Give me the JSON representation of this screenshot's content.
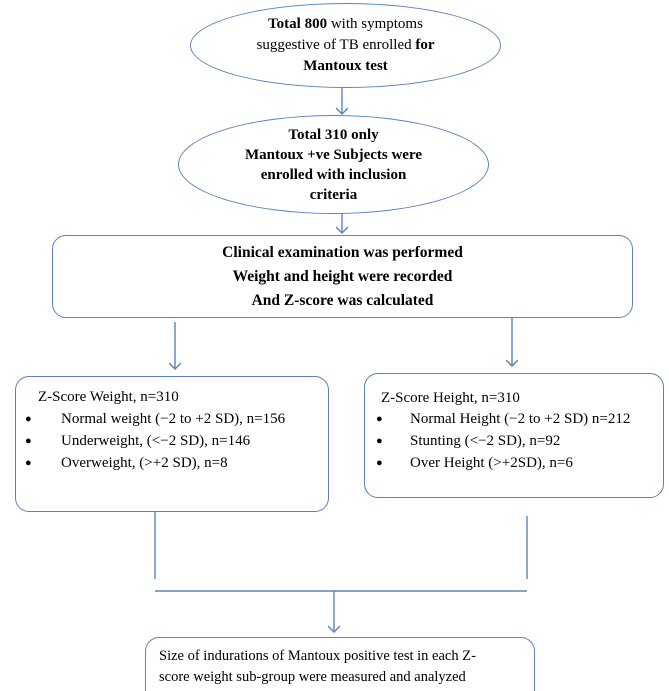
{
  "top_node": {
    "line1_bold": "Total 800",
    "line1_rest": " with symptoms",
    "line2_rest": "suggestive of TB enrolled ",
    "line2_bold": "for",
    "line3_bold": "Mantoux test"
  },
  "second_node": {
    "lines": [
      "Total 310 only",
      "Mantoux +ve Subjects were",
      "enrolled with inclusion",
      "criteria"
    ]
  },
  "third_node": {
    "lines": [
      "Clinical examination was performed",
      "Weight and height were recorded",
      "And Z-score was calculated"
    ]
  },
  "weight_box": {
    "title": "Z-Score Weight, n=310",
    "items": [
      "Normal weight (−2 to +2 SD), n=156",
      "Underweight, (<−2 SD), n=146",
      "Overweight, (>+2 SD), n=8"
    ]
  },
  "height_box": {
    "title": "Z-Score Height, n=310",
    "items": [
      "Normal Height (−2 to +2 SD) n=212",
      "Stunting  (<−2 SD), n=92",
      "Over Height (>+2SD), n=6"
    ]
  },
  "bottom_node": {
    "line1": "Size of indurations of Mantoux positive test in each Z-",
    "line2": "score weight sub-group were measured and analyzed"
  },
  "colors": {
    "border": "#5b83b8",
    "connector": "#5b83b8"
  }
}
